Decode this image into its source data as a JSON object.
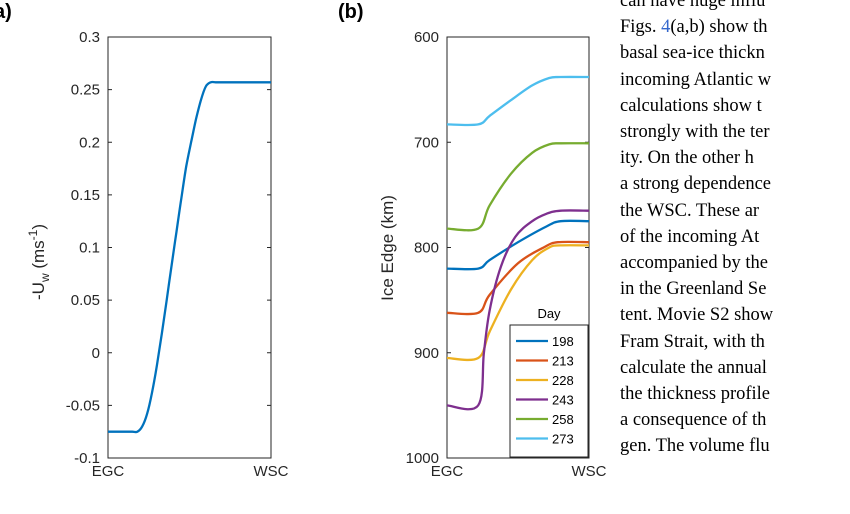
{
  "chart_data": [
    {
      "type": "line",
      "panel_label": "a)",
      "ylabel_main": "-U",
      "ylabel_sub": "w",
      "ylabel_unit_open": " (ms",
      "ylabel_unit_sup": "-1",
      "ylabel_unit_close": ")",
      "ylim": [
        -0.1,
        0.3
      ],
      "yticks": [
        "-0.1",
        "-0.05",
        "0",
        "0.05",
        "0.1",
        "0.15",
        "0.2",
        "0.25",
        "0.3"
      ],
      "ytick_values": [
        -0.1,
        -0.05,
        0,
        0.05,
        0.1,
        0.15,
        0.2,
        0.25,
        0.3
      ],
      "xticks": [
        "EGC",
        "WSC"
      ],
      "xlim": [
        0,
        1
      ],
      "series": [
        {
          "name": "-Uw",
          "color": "#0072BD",
          "x": [
            0,
            0.03,
            0.06,
            0.09,
            0.12,
            0.15,
            0.18,
            0.21,
            0.24,
            0.27,
            0.3,
            0.33,
            0.36,
            0.39,
            0.42,
            0.45,
            0.48,
            0.51,
            0.54,
            0.57,
            0.6,
            0.63,
            0.66,
            0.69,
            0.72,
            0.75,
            0.78,
            0.81,
            0.84,
            0.87,
            0.9,
            1.0
          ],
          "y": [
            -0.075,
            -0.075,
            -0.075,
            -0.075,
            -0.075,
            -0.075,
            -0.075,
            -0.07,
            -0.058,
            -0.038,
            -0.012,
            0.018,
            0.05,
            0.083,
            0.115,
            0.147,
            0.177,
            0.2,
            0.222,
            0.24,
            0.253,
            0.257,
            0.257,
            0.257,
            0.257,
            0.257,
            0.257,
            0.257,
            0.257,
            0.257,
            0.257,
            0.257
          ]
        }
      ]
    },
    {
      "type": "line",
      "panel_label": "(b)",
      "ylabel": "Ice Edge (km)",
      "ylim": [
        600,
        1000
      ],
      "y_reversed": true,
      "yticks": [
        "600",
        "700",
        "800",
        "900",
        "1000"
      ],
      "ytick_values": [
        600,
        700,
        800,
        900,
        1000
      ],
      "xticks": [
        "EGC",
        "WSC"
      ],
      "xlim": [
        0,
        1
      ],
      "legend_title": "Day",
      "legend_position": "bottom-right",
      "series": [
        {
          "name": "198",
          "color": "#0072BD",
          "x": [
            0,
            0.22,
            0.3,
            0.5,
            0.7,
            0.8,
            1.0
          ],
          "y": [
            820,
            820,
            812,
            795,
            780,
            775,
            775
          ]
        },
        {
          "name": "213",
          "color": "#D95319",
          "x": [
            0,
            0.22,
            0.3,
            0.5,
            0.68,
            0.78,
            1.0
          ],
          "y": [
            862,
            862,
            845,
            815,
            800,
            795,
            795
          ]
        },
        {
          "name": "228",
          "color": "#EDB120",
          "x": [
            0,
            0.22,
            0.3,
            0.45,
            0.6,
            0.72,
            0.8,
            1.0
          ],
          "y": [
            905,
            905,
            880,
            840,
            812,
            800,
            798,
            798
          ]
        },
        {
          "name": "243",
          "color": "#7E2F8E",
          "x": [
            0,
            0.22,
            0.26,
            0.3,
            0.38,
            0.48,
            0.6,
            0.7,
            0.8,
            1.0
          ],
          "y": [
            950,
            950,
            900,
            860,
            818,
            790,
            775,
            768,
            765,
            765
          ]
        },
        {
          "name": "258",
          "color": "#77AC30",
          "x": [
            0,
            0.22,
            0.3,
            0.45,
            0.6,
            0.72,
            0.8,
            1.0
          ],
          "y": [
            782,
            782,
            760,
            730,
            710,
            702,
            701,
            701
          ]
        },
        {
          "name": "273",
          "color": "#4DBEEE",
          "x": [
            0,
            0.22,
            0.3,
            0.45,
            0.6,
            0.72,
            0.8,
            1.0
          ],
          "y": [
            683,
            683,
            675,
            660,
            646,
            639,
            638,
            638
          ]
        }
      ]
    }
  ],
  "body": {
    "line1": "can have huge influ",
    "line2_pre": "Figs. ",
    "line2_ref": "4",
    "line2_post": "(a,b) show th",
    "line3": "basal sea-ice thickn",
    "line4": "incoming Atlantic w",
    "line5": "calculations show t",
    "line6": "strongly with the ter",
    "line7": "ity.  On the other h",
    "line8": "a strong dependence",
    "line9": "the WSC. These ar",
    "line10": "of the incoming At",
    "line11": "accompanied by the",
    "line12": "in the Greenland Se",
    "line13": "tent. Movie S2 show",
    "line14": "Fram Strait, with th",
    "line15": "calculate the annual",
    "line16": "the thickness profile",
    "line17": "a consequence of th",
    "line18": "gen. The volume flu"
  }
}
